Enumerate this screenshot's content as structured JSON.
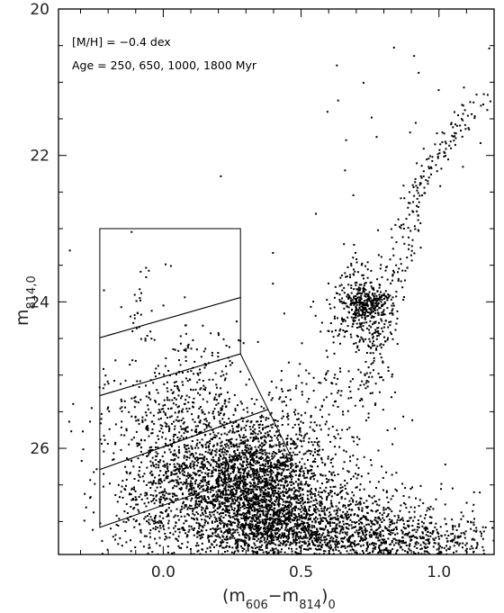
{
  "chart_data": {
    "type": "scatter",
    "title": "",
    "annotations": [
      "[M/H] = −0.4 dex",
      "Age = 250, 650, 1000, 1800 Myr"
    ],
    "xlabel": {
      "open": "(m",
      "sub1": "606",
      "dash": "−m",
      "sub2": "814",
      "close": ")",
      "sub3": "0"
    },
    "ylabel": {
      "main": "m",
      "sub": "814,0"
    },
    "xlim": [
      -0.38,
      1.2
    ],
    "ylim": [
      27.45,
      20
    ],
    "y_inverted": true,
    "xticks": [
      {
        "value": -0.5,
        "label": ""
      },
      {
        "value": 0.0,
        "label": "0.0"
      },
      {
        "value": 0.5,
        "label": "0.5"
      },
      {
        "value": 1.0,
        "label": "1.0"
      }
    ],
    "yticks": [
      {
        "value": 20,
        "label": "20"
      },
      {
        "value": 22,
        "label": "22"
      },
      {
        "value": 24,
        "label": "24"
      },
      {
        "value": 26,
        "label": "26"
      }
    ],
    "grid": false,
    "selection_boxes": [
      {
        "polygon": [
          [
            -0.23,
            23.0
          ],
          [
            0.28,
            23.0
          ],
          [
            0.28,
            23.94
          ],
          [
            -0.23,
            24.49
          ]
        ]
      },
      {
        "polygon": [
          [
            -0.23,
            24.49
          ],
          [
            0.28,
            23.94
          ],
          [
            0.28,
            24.71
          ],
          [
            -0.23,
            25.28
          ]
        ]
      },
      {
        "polygon": [
          [
            -0.23,
            25.28
          ],
          [
            0.28,
            24.71
          ],
          [
            0.38,
            25.47
          ],
          [
            -0.23,
            26.29
          ]
        ]
      },
      {
        "polygon": [
          [
            -0.23,
            26.29
          ],
          [
            0.38,
            25.47
          ],
          [
            0.47,
            26.16
          ],
          [
            -0.23,
            27.08
          ]
        ]
      }
    ],
    "series": [
      {
        "components": [
          {
            "kind": "blob",
            "n": 2300,
            "cx": 0.3,
            "cy": 26.45,
            "sx": 0.14,
            "sy": 0.48
          },
          {
            "kind": "blob",
            "n": 1300,
            "cx": 0.45,
            "cy": 26.95,
            "sx": 0.22,
            "sy": 0.35
          },
          {
            "kind": "blob",
            "n": 900,
            "cx": 0.65,
            "cy": 27.2,
            "sx": 0.25,
            "sy": 0.22
          },
          {
            "kind": "blob",
            "n": 200,
            "cx": 0.97,
            "cy": 27.3,
            "sx": 0.14,
            "sy": 0.16
          },
          {
            "kind": "blob",
            "n": 260,
            "cx": -0.03,
            "cy": 26.8,
            "sx": 0.08,
            "sy": 0.6
          },
          {
            "kind": "blob",
            "n": 380,
            "cx": 0.0,
            "cy": 25.75,
            "sx": 0.12,
            "sy": 0.5
          },
          {
            "kind": "blob",
            "n": 90,
            "cx": 0.13,
            "cy": 25.0,
            "sx": 0.07,
            "sy": 0.35
          },
          {
            "kind": "blob",
            "n": 30,
            "cx": -0.08,
            "cy": 24.05,
            "sx": 0.05,
            "sy": 0.32
          },
          {
            "kind": "blob",
            "n": 350,
            "cx": 0.72,
            "cy": 24.05,
            "sx": 0.06,
            "sy": 0.3
          },
          {
            "kind": "blob",
            "n": 130,
            "cx": 0.74,
            "cy": 24.02,
            "sx": 0.035,
            "sy": 0.09
          },
          {
            "kind": "blob",
            "n": 160,
            "cx": 0.63,
            "cy": 25.45,
            "sx": 0.13,
            "sy": 0.5
          },
          {
            "kind": "band",
            "n": 160,
            "x0": 0.72,
            "y0": 25.3,
            "x1": 0.93,
            "y1": 22.5,
            "sx": 0.03
          },
          {
            "kind": "band",
            "n": 100,
            "x0": 0.92,
            "y0": 22.5,
            "x1": 1.15,
            "y1": 21.2,
            "sx": 0.03
          },
          {
            "kind": "blob",
            "n": 30,
            "cx": 0.9,
            "cy": 21.5,
            "sx": 0.3,
            "sy": 0.7
          },
          {
            "kind": "blob",
            "n": 15,
            "cx": 0.22,
            "cy": 24.5,
            "sx": 0.28,
            "sy": 1.2
          }
        ]
      }
    ]
  }
}
